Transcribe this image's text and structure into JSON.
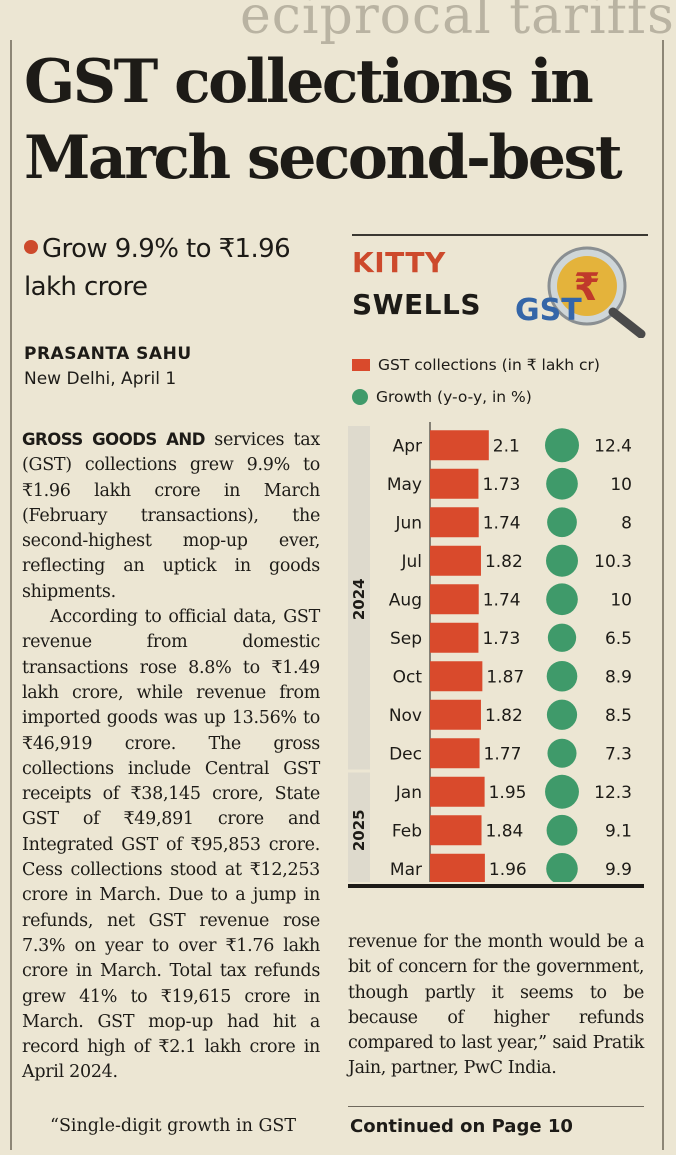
{
  "headline": "GST collections in March second-best",
  "subhead": "Grow 9.9% to ₹1.96 lakh crore",
  "byline": {
    "author": "PRASANTA SAHU",
    "dateline": "New Delhi, April 1"
  },
  "article": {
    "lead_in": "GROSS GOODS AND",
    "para1": "services tax (GST) collections grew 9.9% to ₹1.96 lakh crore in March (February transactions), the second-highest mop-up ever, reflecting an uptick in goods shipments.",
    "para2": "According to official data, GST revenue from domestic transactions rose 8.8% to ₹1.49 lakh crore, while revenue from imported goods was up 13.56% to ₹46,919 crore. The gross collections include Central GST receipts of ₹38,145 crore, State GST of ₹49,891 crore and Integrated GST of ₹95,853 crore. Cess collections stood at ₹12,253 crore in March. Due to a jump in refunds, net GST revenue rose 7.3% on year to over ₹1.76 lakh crore in March. Total tax refunds grew 41% to ₹19,615 crore in March. GST mop-up had hit a record high of ₹2.1 lakh crore in April 2024.",
    "para3_start": "“Single-digit growth in GST",
    "continuation": "revenue for the month would be a bit of concern for the government, though partly it seems to be because of higher refunds compared to last year,” said Pratik Jain, partner, PwC India.",
    "continued": "Continued on Page 10"
  },
  "chart_data": {
    "type": "bar",
    "title_line1": "KITTY",
    "title_line2": "SWELLS",
    "logo_text": "GST",
    "categories": [
      "Apr",
      "May",
      "Jun",
      "Jul",
      "Aug",
      "Sep",
      "Oct",
      "Nov",
      "Dec",
      "Jan",
      "Feb",
      "Mar"
    ],
    "year_groups": [
      {
        "label": "2024",
        "from": "Apr",
        "to": "Dec"
      },
      {
        "label": "2025",
        "from": "Jan",
        "to": "Mar"
      }
    ],
    "series": [
      {
        "name": "GST collections (in ₹ lakh cr)",
        "marker": "bar",
        "color": "#d94a2c",
        "values": [
          2.1,
          1.73,
          1.74,
          1.82,
          1.74,
          1.73,
          1.87,
          1.82,
          1.77,
          1.95,
          1.84,
          1.96
        ],
        "labels": [
          "2.1",
          "1.73",
          "1.74",
          "1.82",
          "1.74",
          "1.73",
          "1.87",
          "1.82",
          "1.77",
          "1.95",
          "1.84",
          "1.96"
        ]
      },
      {
        "name": "Growth (y-o-y, in %)",
        "marker": "bubble",
        "color": "#3f9a6a",
        "values": [
          12.4,
          10,
          8,
          10.3,
          10,
          6.5,
          8.9,
          8.5,
          7.3,
          12.3,
          9.1,
          9.9
        ],
        "labels": [
          "12.4",
          "10",
          "8",
          "10.3",
          "10",
          "6.5",
          "8.9",
          "8.5",
          "7.3",
          "12.3",
          "9.1",
          "9.9"
        ]
      }
    ],
    "colors": {
      "bar": "#d94a2c",
      "bubble": "#3f9a6a",
      "year_band": "#dedacd"
    }
  }
}
